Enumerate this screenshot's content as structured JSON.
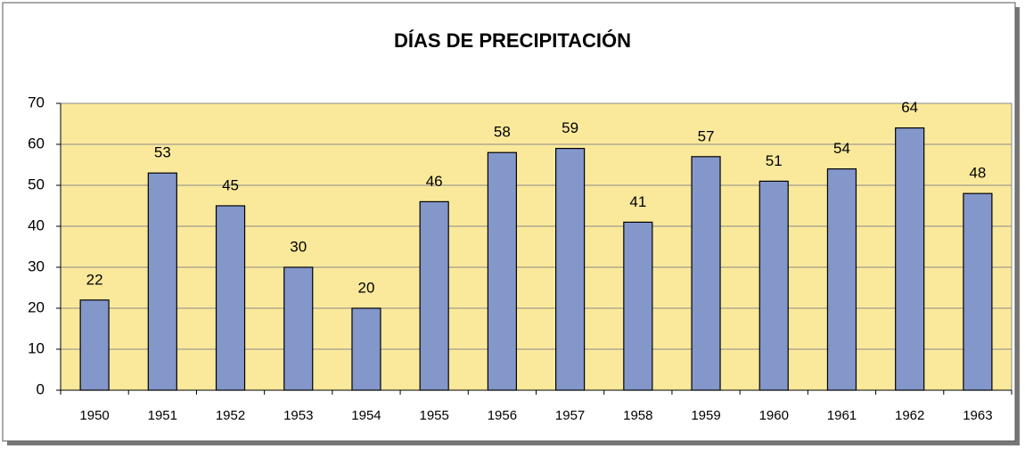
{
  "chart_data": {
    "type": "bar",
    "title": "DÍAS DE PRECIPITACIÓN",
    "categories": [
      "1950",
      "1951",
      "1952",
      "1953",
      "1954",
      "1955",
      "1956",
      "1957",
      "1958",
      "1959",
      "1960",
      "1961",
      "1962",
      "1963"
    ],
    "values": [
      22,
      53,
      45,
      30,
      20,
      46,
      58,
      59,
      41,
      57,
      51,
      54,
      64,
      48
    ],
    "color": "#8497cb",
    "ylim": [
      0,
      70
    ],
    "yticks": [
      0,
      10,
      20,
      30,
      40,
      50,
      60,
      70
    ],
    "grid": true
  }
}
